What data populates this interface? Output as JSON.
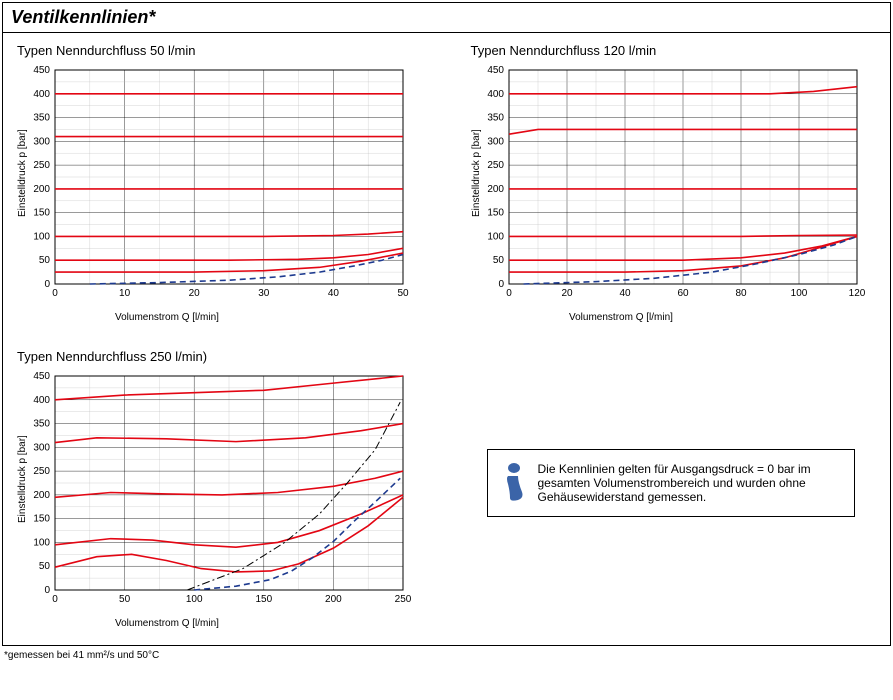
{
  "title": "Ventilkennlinien*",
  "footnote": "*gemessen bei 41 mm²/s und 50°C",
  "note_text": "Die Kennlinien gelten für Ausgangsdruck = 0 bar im gesamten Volumenstrombereich und wurden ohne Gehäusewiderstand gemessen.",
  "xlabel": "Volumenstrom Q [l/min]",
  "ylabel": "Einstelldruck p [bar]",
  "colors": {
    "red": "#e30613",
    "blue": "#1d3a8f",
    "black": "#000000",
    "grid": "#000000",
    "background": "#ffffff",
    "icon_blue": "#3b64a8"
  },
  "charts": [
    {
      "id": "chart50",
      "title": "Typen Nenndurchfluss 50 l/min",
      "xlim": [
        0,
        50
      ],
      "xtick_step": 10,
      "ylim": [
        0,
        450
      ],
      "ytick_step": 50,
      "series": [
        {
          "type": "red",
          "points": [
            [
              0,
              400
            ],
            [
              50,
              400
            ]
          ]
        },
        {
          "type": "red",
          "points": [
            [
              0,
              310
            ],
            [
              50,
              310
            ]
          ]
        },
        {
          "type": "red",
          "points": [
            [
              0,
              200
            ],
            [
              50,
              200
            ]
          ]
        },
        {
          "type": "red",
          "points": [
            [
              0,
              100
            ],
            [
              30,
              100
            ],
            [
              40,
              102
            ],
            [
              45,
              105
            ],
            [
              50,
              110
            ]
          ]
        },
        {
          "type": "red",
          "points": [
            [
              0,
              50
            ],
            [
              25,
              50
            ],
            [
              35,
              52
            ],
            [
              40,
              55
            ],
            [
              45,
              62
            ],
            [
              50,
              75
            ]
          ]
        },
        {
          "type": "red",
          "points": [
            [
              0,
              25
            ],
            [
              20,
              25
            ],
            [
              30,
              28
            ],
            [
              38,
              35
            ],
            [
              44,
              48
            ],
            [
              50,
              65
            ]
          ]
        },
        {
          "type": "blue_dash",
          "points": [
            [
              5,
              0
            ],
            [
              15,
              3
            ],
            [
              25,
              8
            ],
            [
              32,
              15
            ],
            [
              38,
              25
            ],
            [
              43,
              38
            ],
            [
              47,
              50
            ],
            [
              50,
              62
            ]
          ]
        }
      ]
    },
    {
      "id": "chart120",
      "title": "Typen Nenndurchfluss 120 l/min",
      "xlim": [
        0,
        120
      ],
      "xtick_step": 20,
      "ylim": [
        0,
        450
      ],
      "ytick_step": 50,
      "series": [
        {
          "type": "red",
          "points": [
            [
              0,
              400
            ],
            [
              90,
              400
            ],
            [
              105,
              405
            ],
            [
              120,
              415
            ]
          ]
        },
        {
          "type": "red",
          "points": [
            [
              0,
              315
            ],
            [
              10,
              325
            ],
            [
              120,
              325
            ]
          ]
        },
        {
          "type": "red",
          "points": [
            [
              0,
              200
            ],
            [
              120,
              200
            ]
          ]
        },
        {
          "type": "red",
          "points": [
            [
              0,
              100
            ],
            [
              80,
              100
            ],
            [
              100,
              102
            ],
            [
              120,
              103
            ]
          ]
        },
        {
          "type": "red",
          "points": [
            [
              0,
              50
            ],
            [
              60,
              50
            ],
            [
              80,
              55
            ],
            [
              95,
              65
            ],
            [
              108,
              80
            ],
            [
              120,
              100
            ]
          ]
        },
        {
          "type": "red",
          "points": [
            [
              0,
              25
            ],
            [
              40,
              25
            ],
            [
              60,
              28
            ],
            [
              80,
              38
            ],
            [
              95,
              55
            ],
            [
              108,
              78
            ],
            [
              120,
              100
            ]
          ]
        },
        {
          "type": "blue_dash",
          "points": [
            [
              5,
              0
            ],
            [
              30,
              5
            ],
            [
              50,
              12
            ],
            [
              70,
              25
            ],
            [
              85,
              42
            ],
            [
              100,
              62
            ],
            [
              112,
              82
            ],
            [
              120,
              100
            ]
          ]
        }
      ]
    },
    {
      "id": "chart250",
      "title": "Typen Nenndurchfluss 250 l/min)",
      "xlim": [
        0,
        250
      ],
      "xtick_step": 50,
      "ylim": [
        0,
        450
      ],
      "ytick_step": 50,
      "series": [
        {
          "type": "red",
          "points": [
            [
              0,
              400
            ],
            [
              50,
              410
            ],
            [
              100,
              415
            ],
            [
              150,
              420
            ],
            [
              200,
              435
            ],
            [
              250,
              450
            ]
          ]
        },
        {
          "type": "red",
          "points": [
            [
              0,
              310
            ],
            [
              30,
              320
            ],
            [
              80,
              318
            ],
            [
              130,
              312
            ],
            [
              180,
              320
            ],
            [
              220,
              335
            ],
            [
              250,
              350
            ]
          ]
        },
        {
          "type": "red",
          "points": [
            [
              0,
              195
            ],
            [
              40,
              205
            ],
            [
              80,
              202
            ],
            [
              120,
              200
            ],
            [
              160,
              205
            ],
            [
              200,
              218
            ],
            [
              230,
              235
            ],
            [
              250,
              250
            ]
          ]
        },
        {
          "type": "red",
          "points": [
            [
              0,
              95
            ],
            [
              40,
              108
            ],
            [
              70,
              105
            ],
            [
              100,
              95
            ],
            [
              130,
              90
            ],
            [
              160,
              100
            ],
            [
              190,
              125
            ],
            [
              220,
              160
            ],
            [
              250,
              200
            ]
          ]
        },
        {
          "type": "red",
          "points": [
            [
              0,
              48
            ],
            [
              30,
              70
            ],
            [
              55,
              75
            ],
            [
              80,
              62
            ],
            [
              105,
              45
            ],
            [
              130,
              38
            ],
            [
              155,
              40
            ],
            [
              175,
              55
            ],
            [
              200,
              88
            ],
            [
              225,
              135
            ],
            [
              250,
              195
            ]
          ]
        },
        {
          "type": "blue_dash",
          "points": [
            [
              100,
              0
            ],
            [
              130,
              8
            ],
            [
              155,
              22
            ],
            [
              170,
              40
            ],
            [
              185,
              68
            ],
            [
              200,
              102
            ],
            [
              215,
              145
            ],
            [
              230,
              185
            ],
            [
              248,
              235
            ]
          ]
        },
        {
          "type": "black_dashdot",
          "points": [
            [
              95,
              0
            ],
            [
              135,
              45
            ],
            [
              165,
              100
            ],
            [
              190,
              160
            ],
            [
              210,
              225
            ],
            [
              230,
              295
            ],
            [
              248,
              395
            ]
          ]
        }
      ]
    }
  ]
}
